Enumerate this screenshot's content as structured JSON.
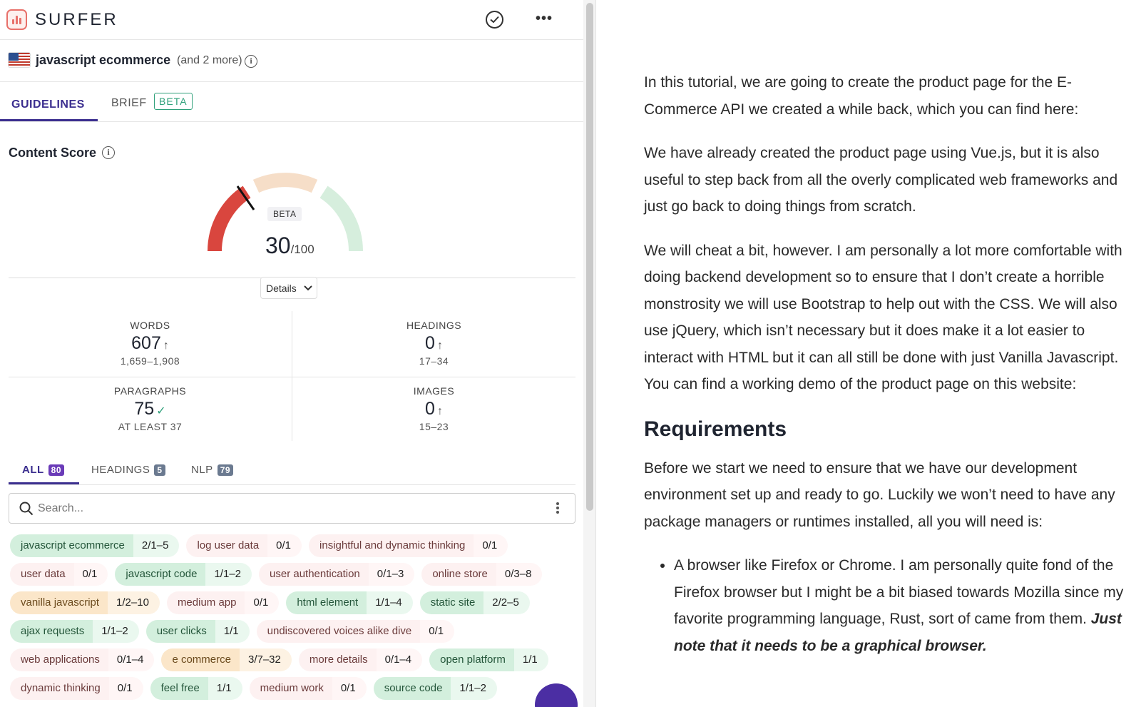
{
  "app": {
    "name": "SURFER"
  },
  "keyword": {
    "main": "javascript ecommerce",
    "more": "(and 2 more)"
  },
  "tabs": {
    "guidelines": "GUIDELINES",
    "brief": "BRIEF",
    "brief_badge": "BETA"
  },
  "content_score": {
    "title": "Content Score",
    "badge": "BETA",
    "value": "30",
    "max": "/100",
    "score_fraction": 0.3,
    "details_label": "Details"
  },
  "metrics": {
    "words": {
      "label": "WORDS",
      "value": "607",
      "range": "1,659–1,908"
    },
    "headings": {
      "label": "HEADINGS",
      "value": "0",
      "range": "17–34"
    },
    "paragraphs": {
      "label": "PARAGRAPHS",
      "value": "75",
      "range": "AT LEAST 37"
    },
    "images": {
      "label": "IMAGES",
      "value": "0",
      "range": "15–23"
    }
  },
  "term_tabs": {
    "all": {
      "label": "ALL",
      "count": "80"
    },
    "headings": {
      "label": "HEADINGS",
      "count": "5"
    },
    "nlp": {
      "label": "NLP",
      "count": "79"
    }
  },
  "search": {
    "placeholder": "Search..."
  },
  "colors": {
    "accent": "#3b2e8f",
    "good": "#2fa07a",
    "bad": "#d9463e",
    "warn": "#f3c9a0"
  },
  "terms": [
    [
      {
        "term": "javascript ecommerce",
        "count": "2/1–5",
        "status": "green"
      },
      {
        "term": "log user data",
        "count": "0/1",
        "status": "red"
      },
      {
        "term": "insightful and dynamic thinking",
        "count": "0/1",
        "status": "red"
      }
    ],
    [
      {
        "term": "user data",
        "count": "0/1",
        "status": "red"
      },
      {
        "term": "javascript code",
        "count": "1/1–2",
        "status": "green"
      },
      {
        "term": "user authentication",
        "count": "0/1–3",
        "status": "red"
      },
      {
        "term": "online store",
        "count": "0/3–8",
        "status": "red"
      }
    ],
    [
      {
        "term": "vanilla javascript",
        "count": "1/2–10",
        "status": "orange"
      },
      {
        "term": "medium app",
        "count": "0/1",
        "status": "red"
      },
      {
        "term": "html element",
        "count": "1/1–4",
        "status": "green"
      },
      {
        "term": "static site",
        "count": "2/2–5",
        "status": "green"
      }
    ],
    [
      {
        "term": "ajax requests",
        "count": "1/1–2",
        "status": "green"
      },
      {
        "term": "user clicks",
        "count": "1/1",
        "status": "green"
      },
      {
        "term": "undiscovered voices alike dive",
        "count": "0/1",
        "status": "red"
      }
    ],
    [
      {
        "term": "web applications",
        "count": "0/1–4",
        "status": "red"
      },
      {
        "term": "e commerce",
        "count": "3/7–32",
        "status": "orange"
      },
      {
        "term": "more details",
        "count": "0/1–4",
        "status": "red"
      },
      {
        "term": "open platform",
        "count": "1/1",
        "status": "green"
      }
    ],
    [
      {
        "term": "dynamic thinking",
        "count": "0/1",
        "status": "red"
      },
      {
        "term": "feel free",
        "count": "1/1",
        "status": "green"
      },
      {
        "term": "medium work",
        "count": "0/1",
        "status": "red"
      },
      {
        "term": "source code",
        "count": "1/1–2",
        "status": "green"
      }
    ]
  ],
  "editor": {
    "p1": "In this tutorial, we are going to create the product page for the E-Commerce API we created a while back, which you can find here:",
    "p2": "We have already created the product page using Vue.js, but it is also useful to step back from all the overly complicated web frameworks and just go back to doing things from scratch.",
    "p3": "We will cheat a bit, however. I am personally a lot more comfortable with doing backend development so to ensure that I don’t create a horrible monstrosity we will use Bootstrap to help out with the CSS. We will also use jQuery, which isn’t necessary but it does make it a lot easier to interact with HTML but it can all still be done with just Vanilla Javascript. You can find a working demo of the product page on this website:",
    "h2": "Requirements",
    "p4": "Before we start we need to ensure that we have our development environment set up and ready to go. Luckily we won’t need to have any package managers or runtimes installed, all you will need is:",
    "li1": "A browser like Firefox or Chrome. I am personally quite fond of the Firefox browser but I might be a bit biased towards Mozilla since my favorite programming language, Rust, sort of came from them. ",
    "li1_emphasis": "Just note that it needs to be a graphical browser."
  }
}
